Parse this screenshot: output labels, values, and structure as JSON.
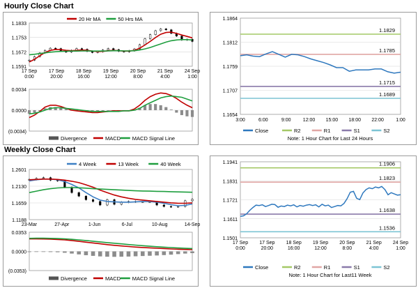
{
  "titles": {
    "hourly": "Hourly Close Chart",
    "weekly": "Weekly Close Chart"
  },
  "colors": {
    "ma_short": "#c00000",
    "ma_long": "#1e9e3e",
    "ma_4wk": "#3d7fc4",
    "macd": "#c00000",
    "signal": "#1e9e3e",
    "histogram": "#8c8c8c",
    "close": "#2e78be",
    "r2": "#a4c866",
    "r1": "#e0a6a4",
    "s1": "#8a7aaa",
    "s2": "#7cc4d4",
    "grid": "#d6d6d6"
  },
  "chart_data": [
    {
      "id": "hourly_candles",
      "type": "line",
      "legend": [
        "20 Hr MA",
        "50 Hrs MA"
      ],
      "yticks": [
        "1.1833",
        "1.1753",
        "1.1672",
        "1.1591"
      ],
      "ylim": [
        1.1591,
        1.1833
      ],
      "xticks": [
        "17 Sep\n0:00",
        "17 Sep\n20:00",
        "18 Sep\n16:00",
        "19 Sep\n12:00",
        "20 Sep\n8:00",
        "21 Sep\n4:00",
        "24 Sep\n1:00"
      ],
      "close": [
        1.1625,
        1.1645,
        1.1665,
        1.168,
        1.1692,
        1.169,
        1.1678,
        1.167,
        1.168,
        1.169,
        1.1686,
        1.1675,
        1.1668,
        1.1672,
        1.1682,
        1.169,
        1.1684,
        1.1675,
        1.1672,
        1.1678,
        1.1688,
        1.1712,
        1.1745,
        1.1768,
        1.179,
        1.18,
        1.1795,
        1.1775,
        1.176,
        1.1738,
        1.1742,
        1.173
      ],
      "series": [
        {
          "name": "20 Hr MA",
          "values": [
            1.1615,
            1.163,
            1.165,
            1.1668,
            1.168,
            1.1685,
            1.1684,
            1.168,
            1.1678,
            1.168,
            1.1682,
            1.168,
            1.1676,
            1.1673,
            1.1674,
            1.1678,
            1.168,
            1.1678,
            1.1676,
            1.1676,
            1.168,
            1.1692,
            1.171,
            1.173,
            1.1752,
            1.177,
            1.178,
            1.1782,
            1.1775,
            1.1766,
            1.1758,
            1.175
          ]
        },
        {
          "name": "50 Hrs MA",
          "values": [
            1.1655,
            1.1658,
            1.1662,
            1.1666,
            1.167,
            1.1672,
            1.1674,
            1.1675,
            1.1676,
            1.1676,
            1.1677,
            1.1677,
            1.1676,
            1.1676,
            1.1676,
            1.1677,
            1.1678,
            1.1678,
            1.1677,
            1.1677,
            1.1678,
            1.1682,
            1.1688,
            1.1696,
            1.1706,
            1.1716,
            1.1726,
            1.1734,
            1.1738,
            1.174,
            1.174,
            1.1738
          ]
        }
      ]
    },
    {
      "id": "hourly_macd",
      "type": "line",
      "yticks": [
        "0.0034",
        "0.0000",
        "(0.0034)"
      ],
      "ylim": [
        -0.0034,
        0.0034
      ],
      "legend": [
        "Divergence",
        "MACD",
        "MACD Signal Line"
      ],
      "series": [
        {
          "name": "Divergence",
          "values": [
            -0.0006,
            -0.0004,
            -0.0001,
            0.0003,
            0.0005,
            0.0005,
            0.0004,
            0.0002,
            0.0,
            -0.0001,
            -0.0002,
            -0.0003,
            -0.0003,
            -0.0003,
            -0.0002,
            -0.0001,
            0.0,
            0.0,
            -0.0001,
            -0.0001,
            0.0,
            0.0004,
            0.0008,
            0.001,
            0.001,
            0.0008,
            0.0005,
            0.0001,
            -0.0004,
            -0.0008,
            -0.001,
            -0.0011
          ]
        },
        {
          "name": "MACD",
          "values": [
            -0.0012,
            -0.0008,
            -0.0002,
            0.0005,
            0.0008,
            0.0008,
            0.0006,
            0.0003,
            0.0,
            -0.0001,
            -0.0002,
            -0.0003,
            -0.0004,
            -0.0004,
            -0.0003,
            -0.0002,
            -0.0001,
            -0.0001,
            -0.0001,
            -0.0001,
            0.0002,
            0.0008,
            0.0016,
            0.0022,
            0.0026,
            0.0028,
            0.0027,
            0.0024,
            0.0019,
            0.0013,
            0.0008,
            0.0004
          ]
        },
        {
          "name": "MACD Signal Line",
          "values": [
            -0.0006,
            -0.0005,
            -0.0003,
            0.0,
            0.0003,
            0.0004,
            0.0004,
            0.0003,
            0.0002,
            0.0001,
            0.0,
            -0.0001,
            -0.0002,
            -0.0002,
            -0.0002,
            -0.0002,
            -0.0002,
            -0.0002,
            -0.0001,
            -0.0001,
            0.0,
            0.0003,
            0.0008,
            0.0012,
            0.0016,
            0.002,
            0.0022,
            0.0023,
            0.0022,
            0.0021,
            0.0018,
            0.0015
          ]
        }
      ]
    },
    {
      "id": "hourly_close",
      "type": "line",
      "ylim": [
        1.1654,
        1.1864
      ],
      "yticks": [
        "1.1864",
        "1.1812",
        "1.1759",
        "1.1707",
        "1.1654"
      ],
      "xticks": [
        "3:00",
        "6:00",
        "9:00",
        "12:00",
        "15:00",
        "18:00",
        "22:00",
        "1:00"
      ],
      "levels": {
        "R2": 1.1829,
        "R1": 1.1785,
        "S1": 1.1715,
        "S2": 1.1689
      },
      "level_labels": [
        "1.1829",
        "1.1785",
        "1.1715",
        "1.1689"
      ],
      "close": [
        1.1782,
        1.1784,
        1.1781,
        1.178,
        1.1786,
        1.1791,
        1.1785,
        1.1779,
        1.1785,
        1.1784,
        1.178,
        1.1775,
        1.1771,
        1.1767,
        1.1762,
        1.1756,
        1.1756,
        1.1748,
        1.1751,
        1.1751,
        1.1751,
        1.1753,
        1.1753,
        1.1747,
        1.1744,
        1.1746
      ],
      "legend": [
        "Close",
        "R2",
        "R1",
        "S1",
        "S2"
      ],
      "note": "Note: 1 Hour Chart for Last 24 Hours"
    },
    {
      "id": "weekly_candles",
      "type": "line",
      "legend": [
        "4 Week",
        "13 Week",
        "40 Week"
      ],
      "yticks": [
        "1.2601",
        "1.2130",
        "1.1659",
        "1.1188"
      ],
      "ylim": [
        1.1188,
        1.2601
      ],
      "xticks": [
        "23-Mar",
        "27-Apr",
        "1-Jun",
        "6-Jul",
        "10-Aug",
        "14-Sep"
      ],
      "close": [
        1.232,
        1.235,
        1.237,
        1.23,
        1.228,
        1.21,
        1.195,
        1.185,
        1.175,
        1.17,
        1.16,
        1.175,
        1.162,
        1.168,
        1.17,
        1.169,
        1.169,
        1.169,
        1.16,
        1.156,
        1.155,
        1.156,
        1.172,
        1.176
      ],
      "series": [
        {
          "name": "4 Week",
          "values": [
            1.228,
            1.231,
            1.233,
            1.233,
            1.231,
            1.226,
            1.218,
            1.208,
            1.195,
            1.183,
            1.174,
            1.17,
            1.169,
            1.168,
            1.168,
            1.169,
            1.17,
            1.17,
            1.168,
            1.165,
            1.161,
            1.158,
            1.159,
            1.163
          ]
        },
        {
          "name": "13 Week",
          "values": [
            1.231,
            1.232,
            1.233,
            1.233,
            1.232,
            1.23,
            1.227,
            1.223,
            1.217,
            1.21,
            1.202,
            1.195,
            1.188,
            1.183,
            1.179,
            1.176,
            1.174,
            1.172,
            1.17,
            1.168,
            1.166,
            1.165,
            1.165,
            1.166
          ]
        },
        {
          "name": "40 Week",
          "values": [
            1.195,
            1.199,
            1.203,
            1.206,
            1.208,
            1.209,
            1.209,
            1.2085,
            1.2075,
            1.206,
            1.205,
            1.204,
            1.203,
            1.202,
            1.201,
            1.2,
            1.1995,
            1.199,
            1.1985,
            1.198,
            1.1975,
            1.197,
            1.1965,
            1.196
          ]
        }
      ]
    },
    {
      "id": "weekly_macd",
      "type": "line",
      "yticks": [
        "0.0353",
        "0.0000",
        "(0.0353)"
      ],
      "ylim": [
        -0.0353,
        0.0353
      ],
      "legend": [
        "Divergence",
        "MACD",
        "MACD Signal Line"
      ],
      "series": [
        {
          "name": "Divergence",
          "values": [
            -0.0012,
            -0.001,
            -0.001,
            -0.0012,
            -0.0015,
            -0.0025,
            -0.004,
            -0.0055,
            -0.007,
            -0.0082,
            -0.0092,
            -0.0098,
            -0.01,
            -0.0098,
            -0.0095,
            -0.009,
            -0.0085,
            -0.008,
            -0.0075,
            -0.0068,
            -0.006,
            -0.005,
            -0.004,
            -0.0032
          ]
        },
        {
          "name": "MACD",
          "values": [
            0.023,
            0.023,
            0.0228,
            0.0225,
            0.022,
            0.0212,
            0.02,
            0.0185,
            0.017,
            0.0155,
            0.014,
            0.0125,
            0.0112,
            0.01,
            0.009,
            0.008,
            0.0072,
            0.0065,
            0.0058,
            0.0052,
            0.0045,
            0.004,
            0.0036,
            0.0032
          ]
        },
        {
          "name": "MACD Signal Line",
          "values": [
            0.024,
            0.0242,
            0.0242,
            0.024,
            0.0236,
            0.023,
            0.0222,
            0.0212,
            0.02,
            0.0188,
            0.0175,
            0.0162,
            0.015,
            0.0138,
            0.0126,
            0.0115,
            0.0105,
            0.0095,
            0.0086,
            0.0078,
            0.007,
            0.0063,
            0.0057,
            0.0052
          ]
        }
      ]
    },
    {
      "id": "weekly_close",
      "type": "line",
      "ylim": [
        1.1501,
        1.1941
      ],
      "yticks": [
        "1.1941",
        "1.1831",
        "1.1721",
        "1.1611",
        "1.1501"
      ],
      "xticks": [
        "17 Sep\n0:00",
        "17 Sep\n20:00",
        "18 Sep\n16:00",
        "19 Sep\n12:00",
        "20 Sep\n8:00",
        "21 Sep\n4:00",
        "24 Sep\n1:00"
      ],
      "levels": {
        "R2": 1.1906,
        "R1": 1.1823,
        "S1": 1.1638,
        "S2": 1.1536
      },
      "level_labels": [
        "1.1906",
        "1.1823",
        "1.1638",
        "1.1536"
      ],
      "close": [
        1.1625,
        1.1628,
        1.164,
        1.166,
        1.1676,
        1.169,
        1.1688,
        1.1692,
        1.1682,
        1.1688,
        1.1695,
        1.1693,
        1.1678,
        1.1685,
        1.1682,
        1.169,
        1.1686,
        1.1692,
        1.168,
        1.1688,
        1.1684,
        1.169,
        1.1693,
        1.1688,
        1.1692,
        1.168,
        1.1695,
        1.1686,
        1.169,
        1.1676,
        1.1682,
        1.1688,
        1.1686,
        1.17,
        1.1728,
        1.1765,
        1.177,
        1.173,
        1.1722,
        1.176,
        1.178,
        1.179,
        1.1785,
        1.1795,
        1.179,
        1.1798,
        1.178,
        1.175,
        1.1762,
        1.1755,
        1.1748,
        1.175
      ],
      "legend": [
        "Close",
        "R2",
        "R1",
        "S1",
        "S2"
      ],
      "note": "Note: 1 Hour Chart for Last11 Week"
    }
  ]
}
